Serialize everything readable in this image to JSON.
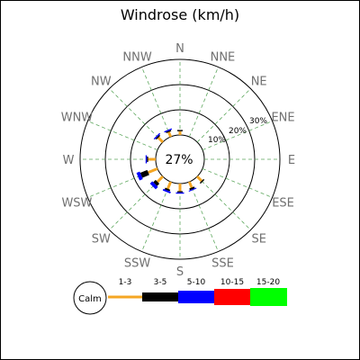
{
  "chart_data": {
    "type": "windrose",
    "title": "Windrose (km/h)",
    "unit": "km/h",
    "directions": [
      "N",
      "NNE",
      "NE",
      "ENE",
      "E",
      "ESE",
      "SE",
      "SSE",
      "S",
      "SSW",
      "SW",
      "WSW",
      "W",
      "WNW",
      "NW",
      "NNW"
    ],
    "calm_percent": 27,
    "calm_label": "27%",
    "legend_calm_label": "Calm",
    "ring_labels": [
      "10%",
      "20%",
      "30%"
    ],
    "speed_bins": [
      {
        "label": "1-3",
        "color": "#f5a623"
      },
      {
        "label": "3-5",
        "color": "#000000"
      },
      {
        "label": "5-10",
        "color": "#0000ff"
      },
      {
        "label": "10-15",
        "color": "#ff0000"
      },
      {
        "label": "15-20",
        "color": "#00ff00"
      }
    ],
    "frequencies": [
      [
        1.5,
        0.5,
        0,
        0,
        0
      ],
      [
        0,
        0,
        0,
        0,
        0
      ],
      [
        0,
        0,
        0,
        0,
        0
      ],
      [
        0,
        0,
        0,
        0,
        0
      ],
      [
        0,
        0,
        0,
        0,
        0
      ],
      [
        0,
        0,
        0,
        0,
        0
      ],
      [
        2.5,
        0.5,
        0,
        0,
        0
      ],
      [
        2.5,
        0.7,
        0.4,
        0,
        0
      ],
      [
        3.0,
        0.5,
        0.5,
        0,
        0
      ],
      [
        3.0,
        0.7,
        0.7,
        0,
        0
      ],
      [
        3.0,
        1.3,
        1.3,
        0,
        0
      ],
      [
        4.0,
        3.0,
        1.4,
        0,
        0
      ],
      [
        3.0,
        0.5,
        0.5,
        0,
        0
      ],
      [
        0,
        0,
        0,
        0,
        0
      ],
      [
        2.5,
        0.5,
        0.5,
        0,
        0
      ],
      [
        2.0,
        0.5,
        0.5,
        0,
        0
      ]
    ]
  }
}
